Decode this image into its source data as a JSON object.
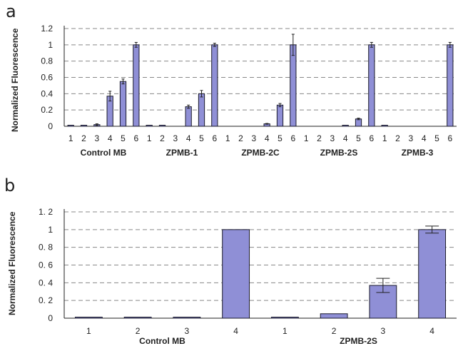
{
  "panels": {
    "a_label": "a",
    "b_label": "b"
  },
  "colors": {
    "bar": "#8f8fd6",
    "bar_stroke": "#1a1a2a",
    "grid": "#888888",
    "axis": "#222222"
  },
  "chart_data": [
    {
      "type": "bar",
      "panel": "a",
      "ylabel": "Normalized Fluorescence",
      "ylim": [
        0,
        1.2
      ],
      "yticks": [
        0,
        0.2,
        0.4,
        0.6,
        0.8,
        1,
        1.2
      ],
      "ytick_labels": [
        "0",
        "0.2",
        "0.4",
        "0.6",
        "0.8",
        "1",
        "1.2"
      ],
      "grid": true,
      "groups": [
        {
          "name": "Control MB",
          "ticks": [
            "1",
            "2",
            "3",
            "4",
            "5",
            "6"
          ],
          "values": [
            0.005,
            0.01,
            0.02,
            0.37,
            0.55,
            1.0
          ],
          "errors": [
            0,
            0,
            0.01,
            0.06,
            0.03,
            0.03
          ]
        },
        {
          "name": "ZPMB-1",
          "ticks": [
            "1",
            "2",
            "3",
            "4",
            "5",
            "6"
          ],
          "values": [
            0.003,
            0.005,
            0,
            0.24,
            0.4,
            1.0
          ],
          "errors": [
            0,
            0,
            0,
            0.02,
            0.04,
            0.02
          ]
        },
        {
          "name": "ZPMB-2C",
          "ticks": [
            "1",
            "2",
            "3",
            "4",
            "5",
            "6"
          ],
          "values": [
            0,
            0,
            0,
            0.03,
            0.26,
            1.0
          ],
          "errors": [
            0,
            0,
            0,
            0.005,
            0.02,
            0.13
          ]
        },
        {
          "name": "ZPMB-2S",
          "ticks": [
            "1",
            "2",
            "3",
            "4",
            "5",
            "6"
          ],
          "values": [
            0,
            0,
            0,
            0.01,
            0.09,
            1.0
          ],
          "errors": [
            0,
            0,
            0,
            0,
            0.01,
            0.03
          ]
        },
        {
          "name": "ZPMB-3",
          "ticks": [
            "1",
            "2",
            "3",
            "4",
            "5",
            "6"
          ],
          "values": [
            0.01,
            0,
            0,
            0,
            0,
            1.0
          ],
          "errors": [
            0,
            0,
            0,
            0,
            0,
            0.03
          ]
        }
      ]
    },
    {
      "type": "bar",
      "panel": "b",
      "ylabel": "Normalized Fluorescence",
      "ylim": [
        0,
        1.2
      ],
      "yticks": [
        0,
        0.2,
        0.4,
        0.6,
        0.8,
        1,
        1.2
      ],
      "ytick_labels": [
        "0",
        "0. 2",
        "0. 4",
        "0. 6",
        "0. 8",
        "1",
        "1. 2"
      ],
      "grid": true,
      "groups": [
        {
          "name": "Control MB",
          "ticks": [
            "1",
            "2",
            "3",
            "4"
          ],
          "values": [
            0.003,
            0.005,
            0.01,
            1.0
          ],
          "errors": [
            0,
            0,
            0,
            0
          ]
        },
        {
          "name": "ZPMB-2S",
          "ticks": [
            "1",
            "2",
            "3",
            "4"
          ],
          "values": [
            0.005,
            0.05,
            0.37,
            1.0
          ],
          "errors": [
            0,
            0,
            0.08,
            0.04
          ]
        }
      ]
    }
  ]
}
